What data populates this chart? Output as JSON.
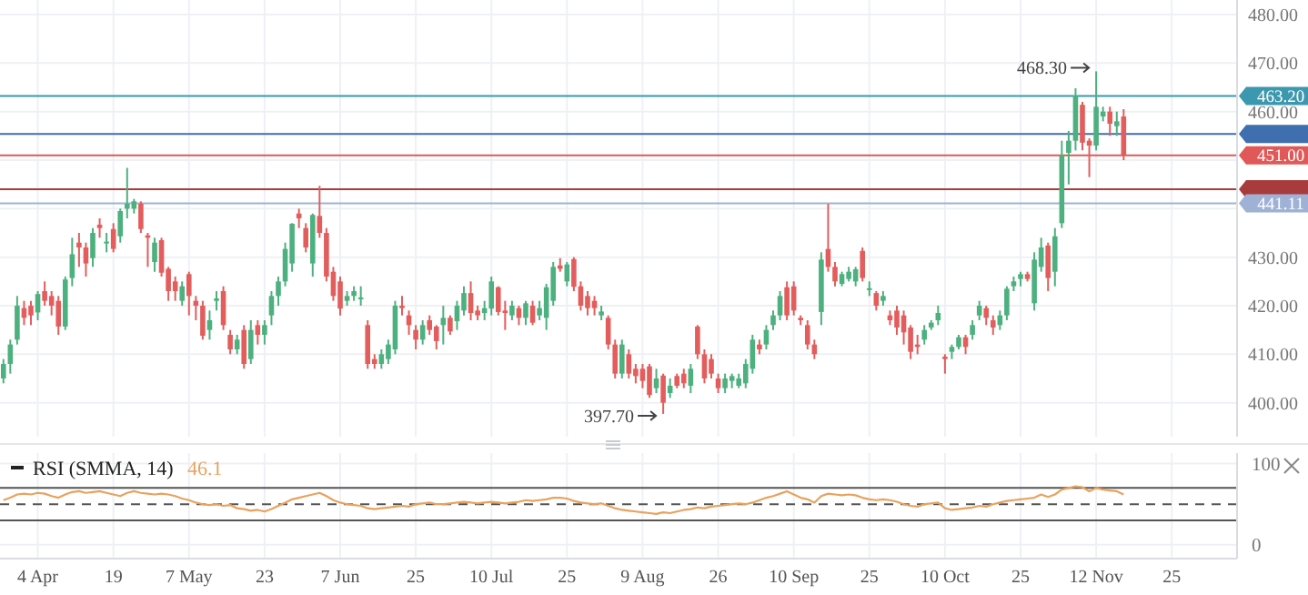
{
  "chart_data": [
    {
      "type": "candlestick",
      "tick_labels": "y",
      "grid": true,
      "categories": [
        null,
        null,
        null,
        null,
        null,
        null,
        null,
        null,
        null,
        null,
        null,
        null,
        null,
        null,
        null,
        null,
        null,
        null,
        null,
        null,
        null,
        null,
        null,
        null,
        null,
        null,
        null,
        null,
        null,
        null,
        null,
        null,
        null,
        null,
        null,
        null,
        null,
        null,
        null,
        null,
        null,
        null,
        null,
        null,
        null,
        null,
        null,
        null,
        null,
        null,
        null,
        null,
        null,
        null,
        null,
        null,
        null,
        null,
        null,
        null,
        null,
        null,
        null,
        null,
        null,
        null,
        null,
        null,
        null,
        null,
        null,
        null,
        null,
        null,
        null,
        null,
        null,
        null,
        null,
        null,
        null,
        null,
        null,
        null,
        null,
        null,
        null,
        null,
        null,
        null,
        null,
        null,
        null,
        null,
        null,
        null,
        null,
        null,
        null,
        null,
        null,
        null,
        null,
        null,
        null,
        null,
        null,
        null,
        null,
        null,
        null,
        null,
        null,
        null,
        null,
        null,
        null,
        null,
        null,
        null,
        null,
        null,
        null,
        null,
        null,
        null,
        null,
        null,
        null,
        null,
        null,
        null,
        null,
        null,
        null,
        null,
        null,
        null,
        null,
        null,
        null,
        null,
        null,
        null,
        null,
        null,
        null,
        null,
        null,
        null,
        null,
        null,
        null,
        null,
        null,
        null,
        null,
        null,
        null,
        null,
        null,
        null,
        null,
        null,
        null,
        null,
        null,
        null,
        null,
        null,
        null,
        null,
        null,
        null,
        null,
        null,
        null,
        null,
        null,
        null
      ],
      "ohlc": [
        [
          405,
          409,
          404,
          408
        ],
        [
          408,
          413,
          406,
          412
        ],
        [
          413,
          422,
          412,
          420
        ],
        [
          419.5,
          421,
          416,
          417.5
        ],
        [
          420,
          421,
          416,
          418
        ],
        [
          418.6,
          423,
          417,
          422.4
        ],
        [
          423,
          425,
          420,
          421
        ],
        [
          422,
          423,
          418,
          420
        ],
        [
          421,
          422,
          414,
          415.7
        ],
        [
          415.7,
          426,
          415,
          425.4
        ],
        [
          425.7,
          434,
          424,
          430.6
        ],
        [
          433,
          435,
          428,
          432
        ],
        [
          432,
          433,
          426,
          428.7
        ],
        [
          429.8,
          436,
          428,
          435
        ],
        [
          436.7,
          438,
          434,
          436
        ],
        [
          433,
          435,
          431,
          433.2
        ],
        [
          435.8,
          437,
          431,
          431.7
        ],
        [
          434.3,
          440,
          433,
          439.5
        ],
        [
          440,
          448.4,
          438,
          441
        ],
        [
          440,
          442,
          439,
          441.5
        ],
        [
          441,
          441.5,
          435,
          435.8
        ],
        [
          434.5,
          435,
          428,
          434
        ],
        [
          429,
          434,
          427,
          433
        ],
        [
          433.5,
          434,
          426,
          426.8
        ],
        [
          427.6,
          428,
          421,
          423
        ],
        [
          425,
          426,
          421,
          423
        ],
        [
          421,
          425,
          420,
          424
        ],
        [
          426.5,
          427,
          418,
          422
        ],
        [
          421,
          422,
          417,
          420
        ],
        [
          420,
          421,
          413,
          413.8
        ],
        [
          415,
          419,
          413,
          417
        ],
        [
          421,
          423,
          419,
          421.5
        ],
        [
          423,
          424,
          415,
          416
        ],
        [
          414,
          415,
          410,
          411
        ],
        [
          411,
          414,
          410,
          413
        ],
        [
          415,
          416,
          407,
          408
        ],
        [
          409,
          417,
          408,
          415
        ],
        [
          416,
          417,
          412,
          414
        ],
        [
          414,
          417,
          412,
          416
        ],
        [
          418,
          423,
          416,
          422
        ],
        [
          422,
          426,
          420,
          425
        ],
        [
          425,
          433,
          424,
          431.7
        ],
        [
          428.7,
          437,
          427,
          436.9
        ],
        [
          439,
          440,
          436,
          438
        ],
        [
          436,
          437,
          431,
          432
        ],
        [
          428.7,
          439,
          426,
          438.7
        ],
        [
          438.5,
          444.7,
          434,
          435
        ],
        [
          435,
          436,
          425,
          426
        ],
        [
          427,
          428,
          421,
          422
        ],
        [
          425,
          426,
          418,
          419.4
        ],
        [
          421,
          423,
          420,
          422
        ],
        [
          422,
          424,
          421,
          423
        ],
        [
          421.5,
          424,
          420,
          421.7
        ],
        [
          416,
          417,
          407,
          408
        ],
        [
          409,
          410,
          407,
          408
        ],
        [
          408,
          411,
          407,
          410
        ],
        [
          409,
          413,
          408,
          412
        ],
        [
          411,
          421,
          410,
          420
        ],
        [
          420,
          422,
          418,
          419.5
        ],
        [
          418,
          419,
          414,
          416
        ],
        [
          415,
          416,
          411,
          413
        ],
        [
          413,
          417,
          412,
          416
        ],
        [
          417,
          418,
          414,
          415
        ],
        [
          415.7,
          416,
          411,
          412.7
        ],
        [
          416,
          420,
          412,
          417.5
        ],
        [
          417.5,
          418,
          414,
          414.7
        ],
        [
          416.8,
          421,
          415,
          420
        ],
        [
          419,
          424,
          418,
          422.6
        ],
        [
          422.6,
          425,
          417,
          418.5
        ],
        [
          419,
          420,
          417,
          418
        ],
        [
          418.5,
          421,
          417,
          419.5
        ],
        [
          419.4,
          426,
          418,
          425
        ],
        [
          423.8,
          424,
          418,
          418.7
        ],
        [
          419,
          421,
          415,
          418.5
        ],
        [
          418,
          421,
          417,
          420
        ],
        [
          419.5,
          420,
          416,
          417.5
        ],
        [
          417.5,
          421,
          416,
          420.5
        ],
        [
          420,
          421,
          416,
          416.5
        ],
        [
          418,
          421,
          417,
          419.5
        ],
        [
          417.5,
          424.5,
          415,
          423.8
        ],
        [
          421,
          429,
          420,
          428
        ],
        [
          428.3,
          429.8,
          427,
          427.6
        ],
        [
          425,
          429,
          424,
          428.5
        ],
        [
          429.6,
          430,
          423,
          423.9
        ],
        [
          424,
          425,
          419,
          420
        ],
        [
          422,
          423,
          418,
          419.5
        ],
        [
          421,
          422,
          418,
          419.5
        ],
        [
          418,
          420,
          417,
          418.8
        ],
        [
          417.5,
          418,
          411,
          412
        ],
        [
          412,
          413,
          405,
          406
        ],
        [
          406,
          413,
          405,
          412
        ],
        [
          410,
          411,
          405,
          406
        ],
        [
          407,
          408,
          404,
          405.5
        ],
        [
          407,
          408,
          403,
          404.5
        ],
        [
          407.5,
          408,
          401,
          401.6
        ],
        [
          403,
          407,
          402,
          405
        ],
        [
          405.6,
          406,
          397.7,
          400
        ],
        [
          402,
          405,
          401,
          403.5
        ],
        [
          405.5,
          406,
          403,
          403.5
        ],
        [
          406,
          407,
          403,
          404
        ],
        [
          403.5,
          408,
          402,
          407
        ],
        [
          415.7,
          416,
          409,
          410
        ],
        [
          410,
          411,
          404,
          405
        ],
        [
          409,
          410,
          405,
          406
        ],
        [
          405,
          406,
          402,
          403
        ],
        [
          403,
          406,
          402,
          405
        ],
        [
          404.5,
          406,
          403,
          405.5
        ],
        [
          403.5,
          406,
          403,
          405
        ],
        [
          404,
          409,
          403,
          408
        ],
        [
          407,
          414,
          406,
          413
        ],
        [
          412,
          413,
          410,
          411
        ],
        [
          412,
          416,
          411,
          415
        ],
        [
          416,
          419,
          415,
          418
        ],
        [
          418,
          423,
          417,
          422
        ],
        [
          423.8,
          425,
          417,
          418
        ],
        [
          424,
          425,
          418,
          419
        ],
        [
          417.5,
          418,
          416,
          417
        ],
        [
          416,
          417,
          411,
          412
        ],
        [
          412,
          413,
          409,
          410
        ],
        [
          418.7,
          431,
          416,
          429.5
        ],
        [
          431.7,
          441,
          427,
          428
        ],
        [
          428,
          429,
          424,
          425
        ],
        [
          424.5,
          427,
          424,
          426.5
        ],
        [
          425.5,
          428,
          425,
          427
        ],
        [
          425,
          428,
          424,
          427.5
        ],
        [
          431.3,
          432,
          425,
          425.7
        ],
        [
          423.5,
          425,
          422,
          423.6
        ],
        [
          422.6,
          423,
          419,
          420
        ],
        [
          421,
          423,
          420,
          422
        ],
        [
          418,
          419,
          416,
          417
        ],
        [
          419,
          420,
          414,
          415.5
        ],
        [
          418,
          419,
          412,
          414.5
        ],
        [
          415.5,
          416,
          409,
          410.5
        ],
        [
          412,
          414,
          410,
          411.5
        ],
        [
          413,
          416,
          412,
          415
        ],
        [
          415.5,
          417,
          415,
          416.5
        ],
        [
          417,
          420,
          416,
          418.5
        ],
        [
          409.5,
          410,
          406,
          409
        ],
        [
          410.5,
          412,
          409,
          411.5
        ],
        [
          411.5,
          414,
          411,
          413.5
        ],
        [
          413.5,
          414,
          410,
          411.5
        ],
        [
          414,
          417,
          413,
          416
        ],
        [
          418,
          421,
          417,
          420
        ],
        [
          419.5,
          420,
          416,
          417.5
        ],
        [
          417,
          418,
          414,
          415.5
        ],
        [
          416,
          419,
          415,
          418
        ],
        [
          418,
          424,
          417,
          423.5
        ],
        [
          424,
          426,
          423,
          425
        ],
        [
          425.5,
          427,
          424,
          426.5
        ],
        [
          426.5,
          427,
          425,
          425.5
        ],
        [
          420.5,
          431,
          419,
          429.5
        ],
        [
          428,
          434,
          427,
          432
        ],
        [
          432.4,
          433,
          423,
          425.7
        ],
        [
          427,
          436,
          424,
          434.3
        ],
        [
          437,
          454,
          436,
          451
        ],
        [
          451.5,
          456,
          445,
          454
        ],
        [
          454,
          464.8,
          452,
          463.3
        ],
        [
          461.4,
          462,
          452,
          453.6
        ],
        [
          454,
          454.5,
          446.5,
          453
        ],
        [
          453,
          468.3,
          452,
          461
        ],
        [
          459,
          461,
          458,
          460
        ],
        [
          460,
          461,
          455,
          457.5
        ],
        [
          457,
          460,
          455,
          458
        ],
        [
          459,
          460.5,
          450,
          451
        ],
        null,
        null,
        null,
        null,
        null,
        null,
        null,
        null,
        null,
        null,
        null,
        null,
        null,
        null,
        null,
        null
      ],
      "colors": [
        "#4db07f",
        "#4db07f",
        "#4db07f",
        "#e35d5d",
        "#e35d5d",
        "#4db07f",
        "#e35d5d",
        "#e35d5d",
        "#e35d5d",
        "#4db07f",
        "#4db07f",
        "#e35d5d",
        "#e35d5d",
        "#4db07f",
        "#e35d5d",
        "#4db07f",
        "#e35d5d",
        "#4db07f",
        "#4db07f",
        "#4db07f",
        "#e35d5d",
        "#e35d5d",
        "#4db07f",
        "#e35d5d",
        "#e35d5d",
        "#e35d5d",
        "#4db07f",
        "#e35d5d",
        "#e35d5d",
        "#e35d5d",
        "#4db07f",
        "#4db07f",
        "#e35d5d",
        "#e35d5d",
        "#4db07f",
        "#e35d5d",
        "#4db07f",
        "#e35d5d",
        "#4db07f",
        "#4db07f",
        "#4db07f",
        "#4db07f",
        "#4db07f",
        "#e35d5d",
        "#e35d5d",
        "#4db07f",
        "#e35d5d",
        "#e35d5d",
        "#e35d5d",
        "#e35d5d",
        "#4db07f",
        "#4db07f",
        "#4db07f",
        "#e35d5d",
        "#e35d5d",
        "#4db07f",
        "#4db07f",
        "#4db07f",
        "#e35d5d",
        "#e35d5d",
        "#e35d5d",
        "#4db07f",
        "#e35d5d",
        "#e35d5d",
        "#4db07f",
        "#e35d5d",
        "#4db07f",
        "#4db07f",
        "#e35d5d",
        "#e35d5d",
        "#4db07f",
        "#4db07f",
        "#e35d5d",
        "#e35d5d",
        "#4db07f",
        "#e35d5d",
        "#4db07f",
        "#e35d5d",
        "#4db07f",
        "#4db07f",
        "#4db07f",
        "#e35d5d",
        "#4db07f",
        "#e35d5d",
        "#e35d5d",
        "#e35d5d",
        "#e35d5d",
        "#4db07f",
        "#e35d5d",
        "#e35d5d",
        "#4db07f",
        "#e35d5d",
        "#e35d5d",
        "#e35d5d",
        "#e35d5d",
        "#4db07f",
        "#e35d5d",
        "#4db07f",
        "#e35d5d",
        "#e35d5d",
        "#4db07f",
        "#e35d5d",
        "#e35d5d",
        "#e35d5d",
        "#e35d5d",
        "#4db07f",
        "#4db07f",
        "#4db07f",
        "#4db07f",
        "#4db07f",
        "#e35d5d",
        "#4db07f",
        "#4db07f",
        "#4db07f",
        "#e35d5d",
        "#e35d5d",
        "#e35d5d",
        "#e35d5d",
        "#e35d5d",
        "#4db07f",
        "#e35d5d",
        "#e35d5d",
        "#4db07f",
        "#4db07f",
        "#4db07f",
        "#e35d5d",
        "#4db07f",
        "#e35d5d",
        "#4db07f",
        "#e35d5d",
        "#e35d5d",
        "#e35d5d",
        "#e35d5d",
        "#e35d5d",
        "#4db07f",
        "#4db07f",
        "#4db07f",
        "#e35d5d",
        "#4db07f",
        "#4db07f",
        "#e35d5d",
        "#4db07f",
        "#4db07f",
        "#e35d5d",
        "#e35d5d",
        "#4db07f",
        "#4db07f",
        "#4db07f",
        "#4db07f",
        "#e35d5d",
        "#4db07f",
        "#4db07f",
        "#e35d5d",
        "#4db07f",
        "#4db07f",
        "#4db07f",
        "#4db07f",
        "#e35d5d",
        "#e35d5d",
        "#4db07f",
        "#4db07f",
        "#e35d5d",
        "#4db07f",
        "#e35d5d",
        null,
        null,
        null,
        null,
        null,
        null,
        null,
        null,
        null,
        null,
        null,
        null,
        null,
        null,
        null,
        null
      ],
      "ylim": [
        393,
        483
      ],
      "yticks": [
        {
          "value": 400,
          "label": "400.00"
        },
        {
          "value": 410,
          "label": "410.00"
        },
        {
          "value": 420,
          "label": "420.00"
        },
        {
          "value": 430,
          "label": "430.00"
        },
        {
          "value": 440,
          "label": null
        },
        {
          "value": 450,
          "label": null
        },
        {
          "value": 460,
          "label": "460.00"
        },
        {
          "value": 470,
          "label": "470.00"
        },
        {
          "value": 480,
          "label": "480.00"
        }
      ],
      "ref_lines": [
        {
          "axis": "y",
          "value": 455.4,
          "label": null,
          "color": "#3f6fae"
        },
        {
          "axis": "y",
          "value": 444,
          "label": null,
          "color": "#a83c3c"
        },
        {
          "axis": "y",
          "value": 463.2,
          "label": "463.20",
          "color": "#3c98ae"
        },
        {
          "axis": "y",
          "value": 451,
          "label": "451.00",
          "color": "#e05858"
        },
        {
          "axis": "y",
          "value": 441.11,
          "label": "441.11",
          "color": "#9fb2d6"
        }
      ],
      "annotations": [
        "468.30",
        "397.70"
      ]
    },
    {
      "type": "line",
      "grid": true,
      "legend": "top left",
      "categories": [
        null,
        null,
        null,
        null,
        null,
        "4 Apr",
        null,
        null,
        null,
        null,
        null,
        null,
        null,
        null,
        null,
        null,
        "19",
        null,
        null,
        null,
        null,
        null,
        null,
        null,
        null,
        null,
        null,
        "7 May",
        null,
        null,
        null,
        null,
        null,
        null,
        null,
        null,
        null,
        null,
        "23",
        null,
        null,
        null,
        null,
        null,
        null,
        null,
        null,
        null,
        null,
        "7 Jun",
        null,
        null,
        null,
        null,
        null,
        null,
        null,
        null,
        null,
        null,
        "25",
        null,
        null,
        null,
        null,
        null,
        null,
        null,
        null,
        null,
        null,
        "10 Jul",
        null,
        null,
        null,
        null,
        null,
        null,
        null,
        null,
        null,
        null,
        "25",
        null,
        null,
        null,
        null,
        null,
        null,
        null,
        null,
        null,
        null,
        "9 Aug",
        null,
        null,
        null,
        null,
        null,
        null,
        null,
        null,
        null,
        null,
        "26",
        null,
        null,
        null,
        null,
        null,
        null,
        null,
        null,
        null,
        null,
        "10 Sep",
        null,
        null,
        null,
        null,
        null,
        null,
        null,
        null,
        null,
        null,
        "25",
        null,
        null,
        null,
        null,
        null,
        null,
        null,
        null,
        null,
        null,
        "10 Oct",
        null,
        null,
        null,
        null,
        null,
        null,
        null,
        null,
        null,
        null,
        "25",
        null,
        null,
        null,
        null,
        null,
        null,
        null,
        null,
        null,
        null,
        "12 Nov",
        null,
        null,
        null,
        null,
        null,
        null,
        null,
        null,
        null,
        null,
        "25",
        null,
        null,
        null,
        null,
        null,
        null,
        null,
        null,
        null
      ],
      "series": [
        {
          "name": "RSI (SMMA, 14)",
          "color": "#e8a25f",
          "values": [
            55,
            58,
            62,
            63,
            62,
            64,
            63,
            60,
            58,
            62,
            65,
            66,
            64,
            65,
            66,
            64,
            62,
            60,
            64,
            66,
            64,
            63,
            62,
            63,
            62,
            60,
            57,
            55,
            52,
            50,
            49,
            50,
            48,
            49,
            45,
            44,
            42,
            43,
            41,
            44,
            48,
            52,
            56,
            58,
            60,
            62,
            64,
            60,
            55,
            52,
            50,
            49,
            48,
            45,
            44,
            45,
            46,
            47,
            48,
            47,
            50,
            51,
            52,
            50,
            50,
            51,
            52,
            53,
            52,
            51,
            52,
            53,
            52,
            51,
            52,
            53,
            55,
            54,
            55,
            56,
            58,
            58,
            57,
            54,
            52,
            51,
            50,
            51,
            48,
            45,
            43,
            42,
            41,
            40,
            39,
            38,
            40,
            39,
            41,
            43,
            44,
            46,
            45,
            47,
            48,
            49,
            50,
            51,
            50,
            52,
            55,
            58,
            60,
            63,
            66,
            62,
            58,
            56,
            52,
            60,
            63,
            62,
            61,
            62,
            61,
            58,
            56,
            55,
            56,
            55,
            53,
            50,
            48,
            47,
            50,
            51,
            52,
            45,
            43,
            44,
            45,
            46,
            48,
            47,
            50,
            52,
            54,
            55,
            56,
            57,
            58,
            62,
            59,
            62,
            68,
            70,
            72,
            71,
            66,
            70,
            68,
            67,
            66,
            62,
            null,
            null,
            null,
            null,
            null,
            null,
            null,
            null,
            null,
            null,
            null,
            null,
            null,
            null,
            null,
            null
          ]
        }
      ],
      "ylim": [
        -17,
        113
      ],
      "yticks": [
        0,
        100
      ],
      "ref_lines": [
        {
          "axis": "y",
          "value": 70,
          "color": "#555555",
          "line_style": "solid"
        },
        {
          "axis": "y",
          "value": 50,
          "color": "#555555",
          "line_style": "dashed"
        },
        {
          "axis": "y",
          "value": 30,
          "color": "#555555",
          "line_style": "solid"
        }
      ],
      "annotations": [
        "46.1"
      ]
    }
  ]
}
